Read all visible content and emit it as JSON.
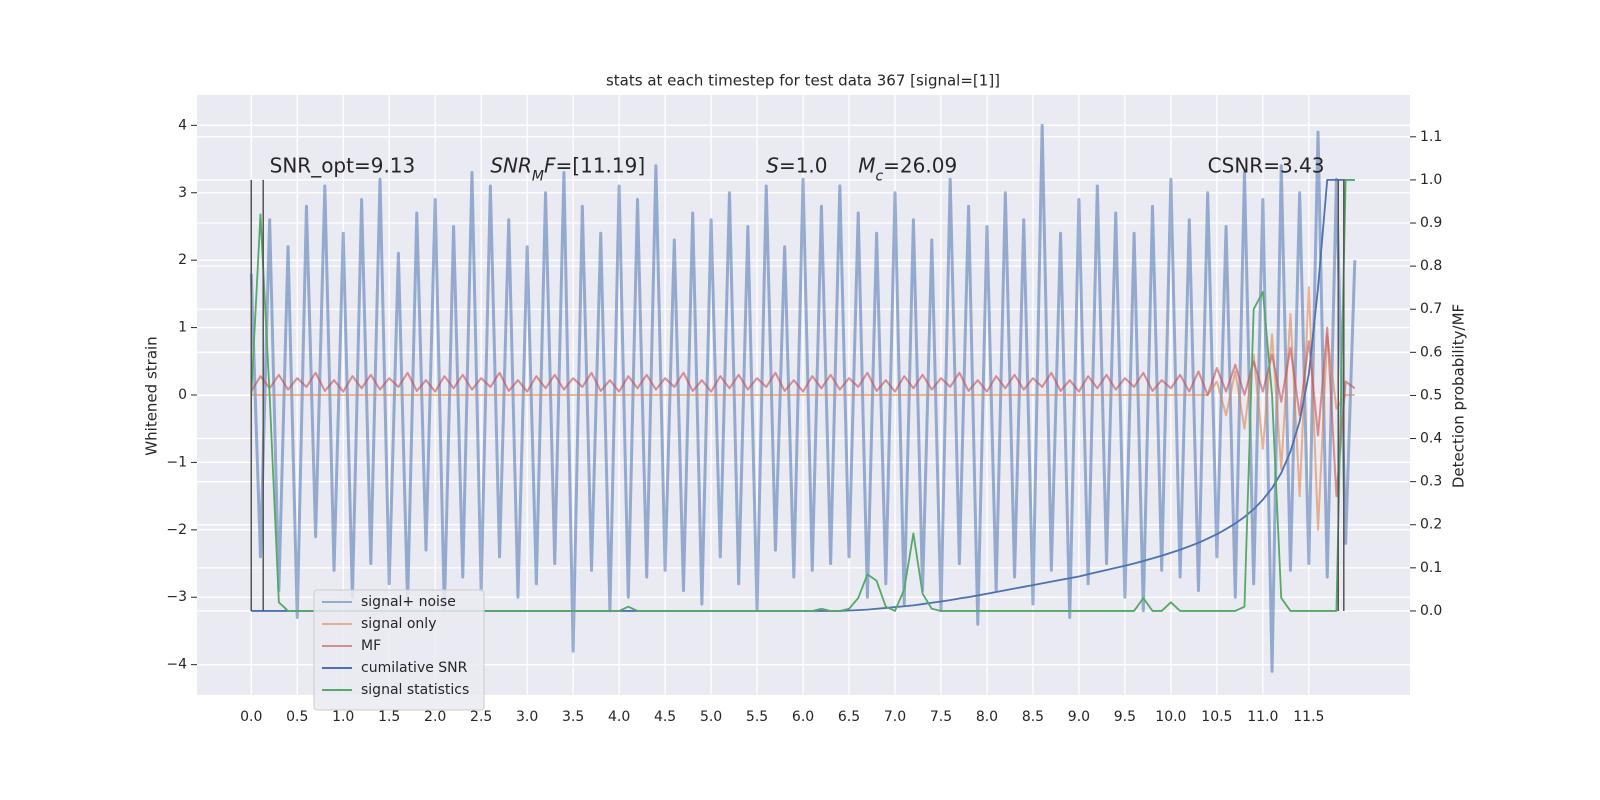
{
  "chart_data": {
    "type": "line",
    "title": "stats at each timestep for test data 367 [signal=[1]]",
    "ylabel": "Whitened strain",
    "y2label": "Detection probability/MF",
    "xlim": [
      -0.59,
      12.6
    ],
    "ylim": [
      -4.45,
      4.45
    ],
    "y2lim": [
      -0.195,
      1.197
    ],
    "xticks": [
      {
        "value": 0,
        "label": "0.0"
      },
      0.5,
      {
        "value": 1,
        "label": "1.0"
      },
      1.5,
      {
        "value": 2,
        "label": "2.0"
      },
      2.5,
      {
        "value": 3,
        "label": "3.0"
      },
      3.5,
      {
        "value": 4,
        "label": "4.0"
      },
      4.5,
      {
        "value": 5,
        "label": "5.0"
      },
      5.5,
      {
        "value": 6,
        "label": "6.0"
      },
      6.5,
      {
        "value": 7,
        "label": "7.0"
      },
      7.5,
      {
        "value": 8,
        "label": "8.0"
      },
      8.5,
      {
        "value": 9,
        "label": "9.0"
      },
      9.5,
      {
        "value": 10,
        "label": "10.0"
      },
      10.5,
      {
        "value": 11,
        "label": "11.0"
      },
      11.5
    ],
    "yticks": [
      {
        "value": -4,
        "label": "−4"
      },
      {
        "value": -3,
        "label": "−3"
      },
      {
        "value": -2,
        "label": "−2"
      },
      {
        "value": -1,
        "label": "−1"
      },
      0,
      1,
      2,
      3,
      4
    ],
    "y2ticks": [
      {
        "value": 0,
        "label": "0.0"
      },
      0.1,
      0.2,
      0.3,
      0.4,
      0.5,
      0.6,
      0.7,
      0.8,
      0.9,
      {
        "value": 1,
        "label": "1.0"
      },
      1.1
    ],
    "grid": true,
    "legend": "lower left",
    "x": [
      0,
      0.1,
      0.2,
      0.3,
      0.4,
      0.5,
      0.6,
      0.7,
      0.8,
      0.9,
      1,
      1.1,
      1.2,
      1.3,
      1.4,
      1.5,
      1.6,
      1.7,
      1.8,
      1.9,
      2,
      2.1,
      2.2,
      2.3,
      2.4,
      2.5,
      2.6,
      2.7,
      2.8,
      2.9,
      3,
      3.1,
      3.2,
      3.3,
      3.4,
      3.5,
      3.6,
      3.7,
      3.8,
      3.9,
      4,
      4.1,
      4.2,
      4.3,
      4.4,
      4.5,
      4.6,
      4.7,
      4.8,
      4.9,
      5,
      5.1,
      5.2,
      5.3,
      5.4,
      5.5,
      5.6,
      5.7,
      5.8,
      5.9,
      6,
      6.1,
      6.2,
      6.3,
      6.4,
      6.5,
      6.6,
      6.7,
      6.8,
      6.9,
      7,
      7.1,
      7.2,
      7.3,
      7.4,
      7.5,
      7.6,
      7.7,
      7.8,
      7.9,
      8,
      8.1,
      8.2,
      8.3,
      8.4,
      8.5,
      8.6,
      8.7,
      8.8,
      8.9,
      9,
      9.1,
      9.2,
      9.3,
      9.4,
      9.5,
      9.6,
      9.7,
      9.8,
      9.9,
      10,
      10.1,
      10.2,
      10.3,
      10.4,
      10.5,
      10.6,
      10.7,
      10.8,
      10.9,
      11,
      11.1,
      11.2,
      11.3,
      11.4,
      11.5,
      11.6,
      11.7,
      11.8,
      11.9,
      12
    ],
    "series": [
      {
        "name": "signal+ noise",
        "color": "#4c72b0",
        "opacity": 0.55,
        "width": 3,
        "values": [
          1.8,
          -2.4,
          2.6,
          -2.9,
          2.2,
          -3.3,
          2.8,
          -2.1,
          3.1,
          -2.6,
          2.4,
          -3.0,
          2.9,
          -2.5,
          3.2,
          -2.8,
          2.1,
          -3.1,
          2.7,
          -2.3,
          2.9,
          -3.2,
          2.5,
          -2.7,
          3.3,
          -2.9,
          3.1,
          -2.4,
          2.6,
          -3.0,
          2.2,
          -2.8,
          3.0,
          -2.5,
          3.3,
          -3.8,
          2.8,
          -2.6,
          2.4,
          -3.2,
          3.1,
          -3.0,
          2.9,
          -2.7,
          3.4,
          -2.6,
          2.3,
          -2.9,
          2.7,
          -3.1,
          2.6,
          -2.4,
          3.0,
          -2.8,
          2.5,
          -3.2,
          3.1,
          -2.3,
          2.2,
          -2.7,
          3.2,
          -2.6,
          2.8,
          -2.5,
          3.1,
          -2.4,
          2.7,
          -3.0,
          2.4,
          -2.8,
          3.0,
          -3.1,
          2.6,
          -2.9,
          2.3,
          -3.2,
          3.2,
          -2.5,
          2.8,
          -3.4,
          2.5,
          -2.9,
          3.0,
          -2.7,
          2.6,
          -3.1,
          4.0,
          -2.6,
          2.4,
          -3.3,
          2.9,
          -2.8,
          3.1,
          -2.5,
          2.7,
          -3.0,
          2.4,
          -3.2,
          2.8,
          -2.6,
          3.2,
          -2.7,
          2.6,
          -2.9,
          3.0,
          -2.4,
          2.5,
          -3.0,
          3.3,
          -2.8,
          2.9,
          -4.1,
          3.4,
          -2.6,
          3.0,
          -2.5,
          3.9,
          -2.7,
          3.2,
          -2.2,
          2.0
        ]
      },
      {
        "name": "signal only",
        "color": "#dd8452",
        "opacity": 0.6,
        "width": 2,
        "values": [
          0,
          0,
          0,
          0,
          0,
          0,
          0,
          0,
          0,
          0,
          0,
          0,
          0,
          0,
          0,
          0,
          0,
          0,
          0,
          0,
          0,
          0,
          0,
          0,
          0,
          0,
          0,
          0,
          0,
          0,
          0,
          0,
          0,
          0,
          0,
          0,
          0,
          0,
          0,
          0,
          0,
          0,
          0,
          0,
          0,
          0,
          0,
          0,
          0,
          0,
          0,
          0,
          0,
          0,
          0,
          0,
          0,
          0,
          0,
          0,
          0,
          0,
          0,
          0,
          0,
          0,
          0,
          0,
          0,
          0,
          0,
          0,
          0,
          0,
          0,
          0,
          0,
          0,
          0,
          0,
          0,
          0,
          0,
          0,
          0,
          0,
          0,
          0,
          0,
          0,
          0,
          0,
          0,
          0,
          0,
          0,
          0,
          0,
          0,
          0,
          0,
          0,
          0,
          0,
          0,
          0.2,
          -0.3,
          0.35,
          -0.5,
          0.6,
          -0.8,
          0.9,
          -1.1,
          1.2,
          -1.5,
          1.6,
          -2.0,
          0.9,
          -0.2,
          0,
          0
        ]
      },
      {
        "name": "MF",
        "color": "#c44e52",
        "opacity": 0.6,
        "width": 2,
        "values": [
          0.05,
          0.28,
          0.1,
          0.3,
          0.08,
          0.25,
          0.12,
          0.33,
          0.06,
          0.22,
          0.05,
          0.28,
          0.1,
          0.3,
          0.08,
          0.25,
          0.12,
          0.33,
          0.06,
          0.22,
          0.05,
          0.28,
          0.1,
          0.3,
          0.08,
          0.25,
          0.12,
          0.33,
          0.06,
          0.22,
          0.05,
          0.28,
          0.1,
          0.3,
          0.08,
          0.25,
          0.12,
          0.33,
          0.06,
          0.22,
          0.05,
          0.28,
          0.1,
          0.3,
          0.08,
          0.25,
          0.12,
          0.33,
          0.06,
          0.22,
          0.05,
          0.28,
          0.1,
          0.3,
          0.08,
          0.25,
          0.12,
          0.33,
          0.06,
          0.22,
          0.05,
          0.28,
          0.1,
          0.3,
          0.08,
          0.25,
          0.12,
          0.33,
          0.06,
          0.22,
          0.05,
          0.28,
          0.1,
          0.3,
          0.08,
          0.25,
          0.12,
          0.33,
          0.06,
          0.22,
          0.05,
          0.28,
          0.1,
          0.3,
          0.08,
          0.25,
          0.12,
          0.33,
          0.06,
          0.22,
          0.05,
          0.28,
          0.1,
          0.3,
          0.08,
          0.25,
          0.12,
          0.33,
          0.06,
          0.22,
          0.1,
          0.3,
          0.05,
          0.35,
          0.0,
          0.4,
          0.05,
          0.45,
          0,
          0.5,
          0.05,
          0.6,
          -0.1,
          0.7,
          -0.3,
          0.8,
          -0.6,
          1.0,
          -1.5,
          0.2,
          0.1
        ]
      },
      {
        "name": "cumilative SNR",
        "color": "#4c72b0",
        "opacity": 1,
        "width": 1.8,
        "axis": "y2",
        "values": [
          0,
          0,
          0,
          0,
          0,
          0,
          0,
          0,
          0,
          0,
          0,
          0,
          0,
          0,
          0,
          0,
          0,
          0,
          0,
          0,
          0,
          0,
          0,
          0,
          0,
          0,
          0,
          0,
          0,
          0,
          0,
          0,
          0,
          0,
          0,
          0,
          0,
          0,
          0,
          0,
          0,
          0,
          0,
          0,
          0,
          0,
          0,
          0,
          0,
          0,
          0,
          0,
          0,
          0,
          0,
          0,
          0,
          0,
          0,
          0,
          0,
          0,
          0,
          0,
          0,
          0.001,
          0.002,
          0.003,
          0.005,
          0.007,
          0.009,
          0.011,
          0.013,
          0.016,
          0.019,
          0.022,
          0.025,
          0.029,
          0.032,
          0.036,
          0.04,
          0.044,
          0.048,
          0.052,
          0.056,
          0.06,
          0.064,
          0.068,
          0.072,
          0.076,
          0.08,
          0.085,
          0.09,
          0.095,
          0.1,
          0.105,
          0.11,
          0.116,
          0.122,
          0.128,
          0.135,
          0.142,
          0.15,
          0.158,
          0.168,
          0.178,
          0.19,
          0.203,
          0.218,
          0.236,
          0.258,
          0.285,
          0.32,
          0.37,
          0.44,
          0.55,
          0.75,
          1.0,
          1.0,
          1.0,
          1.0
        ]
      },
      {
        "name": "signal statistics",
        "color": "#55a868",
        "opacity": 1,
        "width": 1.8,
        "axis": "y2",
        "values": [
          0.5,
          0.92,
          0.5,
          0.02,
          0,
          0,
          0,
          0,
          0,
          0,
          0,
          0,
          0,
          0,
          0,
          0,
          0,
          0,
          0,
          0,
          0,
          0,
          0,
          0,
          0,
          0,
          0,
          0,
          0,
          0,
          0,
          0,
          0,
          0,
          0,
          0,
          0,
          0,
          0,
          0,
          0,
          0.01,
          0,
          0,
          0,
          0,
          0,
          0,
          0,
          0,
          0,
          0,
          0,
          0,
          0,
          0,
          0,
          0,
          0,
          0,
          0,
          0,
          0.005,
          0,
          0,
          0.005,
          0.03,
          0.085,
          0.07,
          0.01,
          0,
          0.05,
          0.18,
          0.04,
          0.005,
          0,
          0,
          0,
          0,
          0,
          0,
          0,
          0,
          0,
          0,
          0,
          0,
          0,
          0,
          0,
          0,
          0,
          0,
          0,
          0,
          0,
          0,
          0.03,
          0,
          0,
          0.02,
          0,
          0,
          0,
          0,
          0,
          0,
          0,
          0.01,
          0.7,
          0.74,
          0.5,
          0.03,
          0,
          0,
          0,
          0,
          0,
          0,
          1.0,
          1.0
        ]
      }
    ],
    "vlines": {
      "x": [
        0,
        0.13,
        11.82,
        11.88
      ],
      "ymin": 0,
      "ymax": 1
    },
    "annotations": [
      {
        "x": 0.2,
        "y": 3.3,
        "parts": [
          {
            "t": "SNR_opt=9.13"
          }
        ]
      },
      {
        "x": 2.6,
        "y": 3.3,
        "parts": [
          {
            "t": "SNR",
            "style": "italic"
          },
          {
            "t": "M",
            "style": "sub"
          },
          {
            "t": "F",
            "style": "italic"
          },
          {
            "t": "=[11.19]"
          }
        ]
      },
      {
        "x": 5.6,
        "y": 3.3,
        "parts": [
          {
            "t": "S",
            "style": "italic"
          },
          {
            "t": "=1.0"
          }
        ]
      },
      {
        "x": 6.6,
        "y": 3.3,
        "parts": [
          {
            "t": "M",
            "style": "italic"
          },
          {
            "t": "c",
            "style": "sub"
          },
          {
            "t": "=26.09"
          }
        ]
      },
      {
        "x": 10.4,
        "y": 3.3,
        "parts": [
          {
            "t": "CSNR=3.43"
          }
        ]
      }
    ]
  }
}
